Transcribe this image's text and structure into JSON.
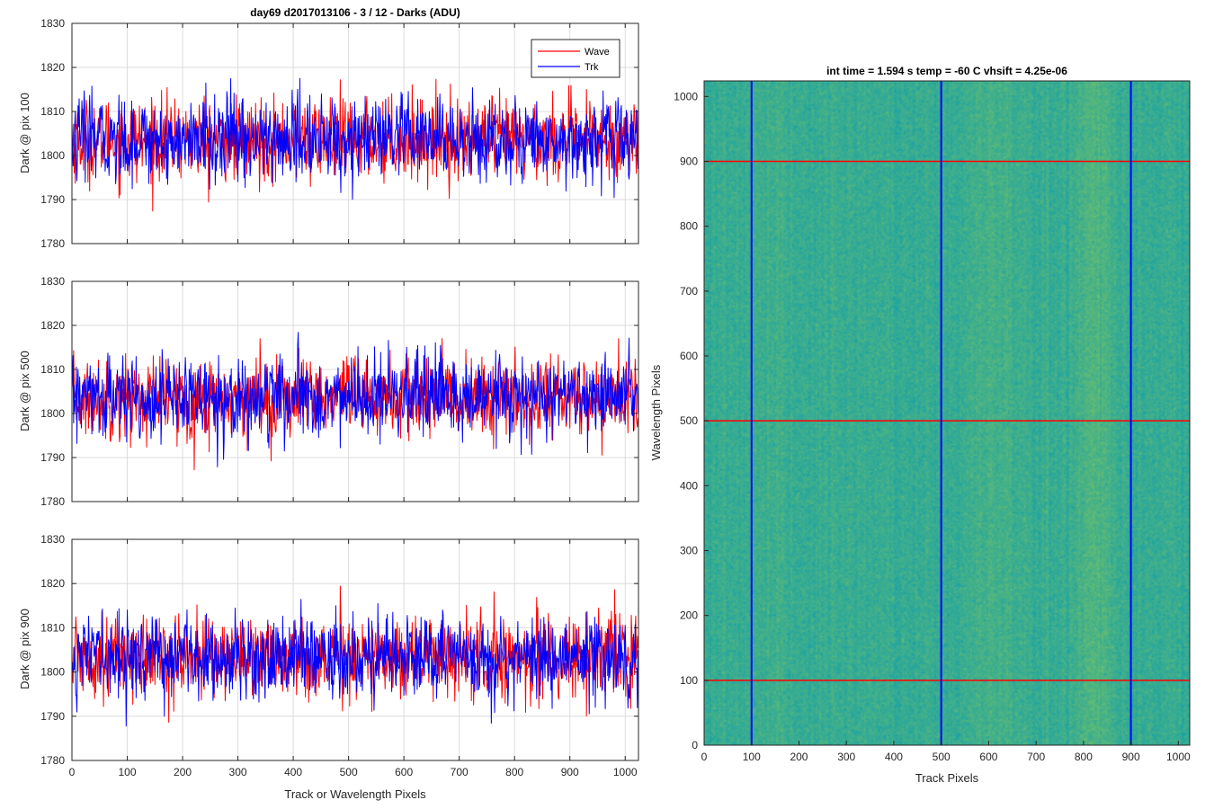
{
  "colors": {
    "wave": "#ff0000",
    "trk": "#0000ff",
    "grid": "#dcdcdc",
    "axis": "#262626",
    "image_base": "#2ca89a",
    "image_band": "#86c85a"
  },
  "chart_data": [
    {
      "type": "line",
      "title": "day69 d2017013106 - 3 / 12 - Darks (ADU)",
      "xlabel": "",
      "ylabel": "Dark @ pix 100",
      "xlim": [
        0,
        1024
      ],
      "ylim": [
        1780,
        1830
      ],
      "xticks": [
        0,
        100,
        200,
        300,
        400,
        500,
        600,
        700,
        800,
        900,
        1000
      ],
      "xtick_labels": false,
      "yticks": [
        1780,
        1790,
        1800,
        1810,
        1820,
        1830
      ],
      "grid": true,
      "legend": "top-right",
      "series": [
        {
          "name": "Wave",
          "color": "#ff0000",
          "mean": 1803.5,
          "std": 4.6,
          "n": 1024,
          "min": 1786,
          "max": 1820
        },
        {
          "name": "Trk",
          "color": "#0000ff",
          "mean": 1803.5,
          "std": 4.8,
          "n": 1024,
          "min": 1782,
          "max": 1822
        }
      ]
    },
    {
      "type": "line",
      "title": "",
      "xlabel": "",
      "ylabel": "Dark @ pix 500",
      "xlim": [
        0,
        1024
      ],
      "ylim": [
        1780,
        1830
      ],
      "xticks": [
        0,
        100,
        200,
        300,
        400,
        500,
        600,
        700,
        800,
        900,
        1000
      ],
      "xtick_labels": false,
      "yticks": [
        1780,
        1790,
        1800,
        1810,
        1820,
        1830
      ],
      "grid": true,
      "series": [
        {
          "name": "Wave",
          "color": "#ff0000",
          "mean": 1803.5,
          "std": 4.6,
          "n": 1024,
          "min": 1783,
          "max": 1817
        },
        {
          "name": "Trk",
          "color": "#0000ff",
          "mean": 1803.5,
          "std": 4.6,
          "n": 1024,
          "min": 1784,
          "max": 1821
        }
      ]
    },
    {
      "type": "line",
      "title": "",
      "xlabel": "Track or Wavelength Pixels",
      "ylabel": "Dark @ pix 900",
      "xlim": [
        0,
        1024
      ],
      "ylim": [
        1780,
        1830
      ],
      "xticks": [
        0,
        100,
        200,
        300,
        400,
        500,
        600,
        700,
        800,
        900,
        1000
      ],
      "xtick_labels": true,
      "yticks": [
        1780,
        1790,
        1800,
        1810,
        1820,
        1830
      ],
      "grid": true,
      "series": [
        {
          "name": "Wave",
          "color": "#ff0000",
          "mean": 1803.5,
          "std": 4.6,
          "n": 1024,
          "min": 1787,
          "max": 1822
        },
        {
          "name": "Trk",
          "color": "#0000ff",
          "mean": 1803.5,
          "std": 4.6,
          "n": 1024,
          "min": 1786,
          "max": 1820
        }
      ]
    },
    {
      "type": "heatmap",
      "title": "int time = 1.594 s   temp = -60 C   vhsift = 4.25e-06",
      "xlabel": "Track Pixels",
      "ylabel": "Wavelength Pixels",
      "xlim": [
        0,
        1024
      ],
      "ylim": [
        0,
        1024
      ],
      "xticks": [
        0,
        100,
        200,
        300,
        400,
        500,
        600,
        700,
        800,
        900,
        1000
      ],
      "yticks": [
        0,
        100,
        200,
        300,
        400,
        500,
        600,
        700,
        800,
        900,
        1000
      ],
      "grid": false,
      "vertical_lines": {
        "color": "#0000ff",
        "x": [
          100,
          500,
          900
        ]
      },
      "horizontal_lines": {
        "color": "#ff0000",
        "y": [
          100,
          500,
          900
        ]
      }
    }
  ]
}
